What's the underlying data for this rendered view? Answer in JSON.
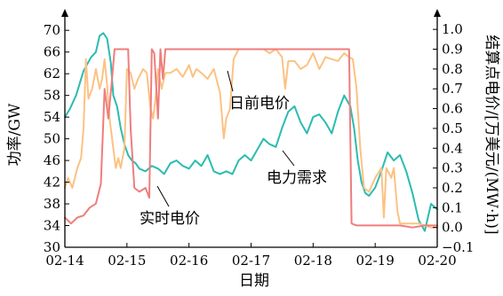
{
  "chart_data": {
    "type": "line",
    "xlabel": "日期",
    "ylabel_left": "功率/GW",
    "ylabel_right": "结算点电价/[万美元/(MW·h)]",
    "x_ticks": [
      "02-14",
      "02-15",
      "02-16",
      "02-17",
      "02-18",
      "02-19",
      "02-20"
    ],
    "x_range": [
      0,
      6
    ],
    "y_left_range": [
      30,
      72
    ],
    "y_left_ticks": [
      30,
      34,
      38,
      42,
      46,
      50,
      54,
      58,
      62,
      66,
      70
    ],
    "y_right_range": [
      -0.1,
      1.05
    ],
    "y_right_ticks": [
      "−0.1",
      "0.0",
      "0.1",
      "0.2",
      "0.3",
      "0.4",
      "0.5",
      "0.6",
      "0.7",
      "0.8",
      "0.9",
      "1.0"
    ],
    "annotations": {
      "day_ahead": "日前电价",
      "realtime": "实时电价",
      "demand": "电力需求"
    },
    "series": [
      {
        "name": "电力需求",
        "axis": "left",
        "color": "#2bbcb0",
        "x": [
          0.0,
          0.08,
          0.18,
          0.3,
          0.42,
          0.5,
          0.56,
          0.62,
          0.68,
          0.74,
          0.78,
          0.84,
          0.9,
          0.96,
          1.02,
          1.08,
          1.14,
          1.2,
          1.3,
          1.4,
          1.5,
          1.6,
          1.7,
          1.8,
          1.9,
          2.0,
          2.1,
          2.2,
          2.3,
          2.4,
          2.5,
          2.6,
          2.7,
          2.8,
          2.9,
          3.0,
          3.1,
          3.2,
          3.3,
          3.4,
          3.5,
          3.6,
          3.7,
          3.8,
          3.9,
          4.0,
          4.1,
          4.2,
          4.3,
          4.4,
          4.5,
          4.6,
          4.66,
          4.72,
          4.78,
          4.84,
          4.9,
          5.0,
          5.1,
          5.2,
          5.3,
          5.4,
          5.5,
          5.6,
          5.7,
          5.8,
          5.9,
          6.0
        ],
        "y": [
          54.0,
          55.5,
          58.0,
          62.5,
          65.0,
          66.0,
          69.0,
          69.5,
          68.5,
          64.0,
          58.0,
          56.0,
          52.0,
          49.0,
          47.0,
          46.0,
          45.5,
          44.5,
          44.0,
          45.0,
          44.5,
          43.5,
          45.5,
          46.0,
          45.0,
          44.5,
          46.0,
          45.0,
          47.0,
          44.0,
          43.5,
          44.0,
          43.5,
          46.0,
          47.0,
          46.0,
          48.0,
          50.0,
          49.0,
          48.5,
          52.0,
          55.0,
          56.0,
          53.0,
          51.0,
          54.0,
          54.5,
          53.0,
          51.0,
          55.0,
          58.0,
          56.0,
          52.0,
          46.0,
          42.0,
          40.0,
          39.5,
          41.0,
          44.0,
          47.5,
          46.0,
          47.0,
          44.0,
          40.0,
          35.0,
          33.0,
          38.0,
          37.0
        ]
      },
      {
        "name": "日前电价",
        "axis": "right",
        "color": "#fcc283",
        "x": [
          0.0,
          0.05,
          0.12,
          0.2,
          0.26,
          0.3,
          0.34,
          0.38,
          0.44,
          0.5,
          0.56,
          0.6,
          0.64,
          0.68,
          0.72,
          0.78,
          0.82,
          0.86,
          0.9,
          0.96,
          1.0,
          1.06,
          1.12,
          1.18,
          1.26,
          1.32,
          1.38,
          1.42,
          1.46,
          1.5,
          1.56,
          1.62,
          1.7,
          1.8,
          1.9,
          2.0,
          2.06,
          2.12,
          2.2,
          2.3,
          2.4,
          2.5,
          2.56,
          2.6,
          2.66,
          2.72,
          2.8,
          2.9,
          3.0,
          3.1,
          3.2,
          3.3,
          3.4,
          3.5,
          3.55,
          3.6,
          3.7,
          3.8,
          3.9,
          4.0,
          4.1,
          4.2,
          4.3,
          4.4,
          4.5,
          4.58,
          4.64,
          4.7,
          4.76,
          4.82,
          4.9,
          5.0,
          5.1,
          5.14,
          5.18,
          5.26,
          5.3,
          5.36,
          5.4,
          5.5,
          5.6,
          5.7,
          5.8,
          5.9,
          6.0
        ],
        "y": [
          0.2,
          0.25,
          0.2,
          0.3,
          0.35,
          0.5,
          0.85,
          0.65,
          0.7,
          0.8,
          0.7,
          0.75,
          0.85,
          0.72,
          0.55,
          0.4,
          0.3,
          0.35,
          0.3,
          0.4,
          0.8,
          0.78,
          0.7,
          0.75,
          0.8,
          0.78,
          0.6,
          0.55,
          0.65,
          0.8,
          0.7,
          0.78,
          0.78,
          0.8,
          0.76,
          0.82,
          0.76,
          0.8,
          0.78,
          0.75,
          0.8,
          0.68,
          0.45,
          0.55,
          0.6,
          0.85,
          0.9,
          0.9,
          0.9,
          0.9,
          0.9,
          0.88,
          0.9,
          0.86,
          0.7,
          0.84,
          0.84,
          0.8,
          0.82,
          0.88,
          0.8,
          0.86,
          0.85,
          0.84,
          0.88,
          0.86,
          0.85,
          0.7,
          0.4,
          0.2,
          0.18,
          0.25,
          0.3,
          0.05,
          0.3,
          0.25,
          0.3,
          0.08,
          0.02,
          0.02,
          0.02,
          0.02,
          0.01,
          0.0,
          0.0
        ]
      },
      {
        "name": "实时电价",
        "axis": "right",
        "color": "#ee7e7c",
        "x": [
          0.0,
          0.1,
          0.2,
          0.3,
          0.4,
          0.5,
          0.58,
          0.64,
          0.7,
          0.76,
          0.8,
          0.84,
          0.88,
          0.92,
          0.98,
          1.02,
          1.06,
          1.12,
          1.2,
          1.3,
          1.36,
          1.4,
          1.44,
          1.5,
          1.54,
          1.58,
          1.62,
          1.66,
          1.7,
          1.8,
          2.0,
          2.5,
          3.0,
          3.5,
          4.0,
          4.3,
          4.52,
          4.58,
          4.62,
          4.7,
          4.8,
          5.0,
          5.2,
          5.4,
          5.6,
          5.8,
          6.0
        ],
        "y": [
          0.05,
          0.02,
          0.05,
          0.06,
          0.1,
          0.12,
          0.22,
          0.7,
          0.55,
          0.75,
          0.9,
          0.9,
          0.9,
          0.9,
          0.9,
          0.9,
          0.5,
          0.2,
          0.18,
          0.2,
          0.15,
          0.9,
          0.88,
          0.55,
          0.9,
          0.75,
          0.9,
          0.9,
          0.9,
          0.9,
          0.9,
          0.9,
          0.9,
          0.9,
          0.9,
          0.9,
          0.9,
          0.9,
          0.02,
          0.01,
          0.01,
          0.01,
          0.01,
          0.01,
          0.0,
          0.01,
          0.01
        ]
      }
    ]
  }
}
